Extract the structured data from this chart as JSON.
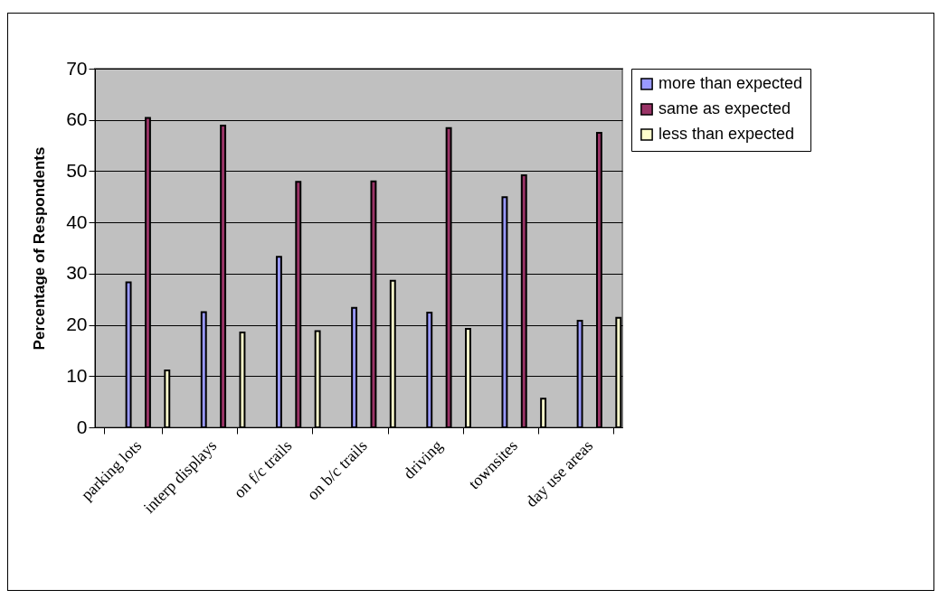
{
  "chart_data": {
    "type": "bar",
    "ylabel": "Percentage of Respondents",
    "categories": [
      "parking lots",
      "interp displays",
      "on f/c trails",
      "on b/c trails",
      "driving",
      "townsites",
      "day use areas"
    ],
    "series": [
      {
        "name": "more than expected",
        "color": "#9999ff",
        "values": [
          28.3,
          22.5,
          33.3,
          23.3,
          22.4,
          44.9,
          20.8
        ]
      },
      {
        "name": "same as expected",
        "color": "#993366",
        "values": [
          60.4,
          58.9,
          47.9,
          48.0,
          58.4,
          49.2,
          57.5
        ]
      },
      {
        "name": "less than expected",
        "color": "#ffffcc",
        "values": [
          11.1,
          18.5,
          18.8,
          28.6,
          19.2,
          5.6,
          21.4
        ]
      }
    ],
    "ylim": [
      0,
      70
    ],
    "yticks": [
      0,
      10,
      20,
      30,
      40,
      50,
      60,
      70
    ],
    "grid": "y",
    "legend": "right"
  }
}
